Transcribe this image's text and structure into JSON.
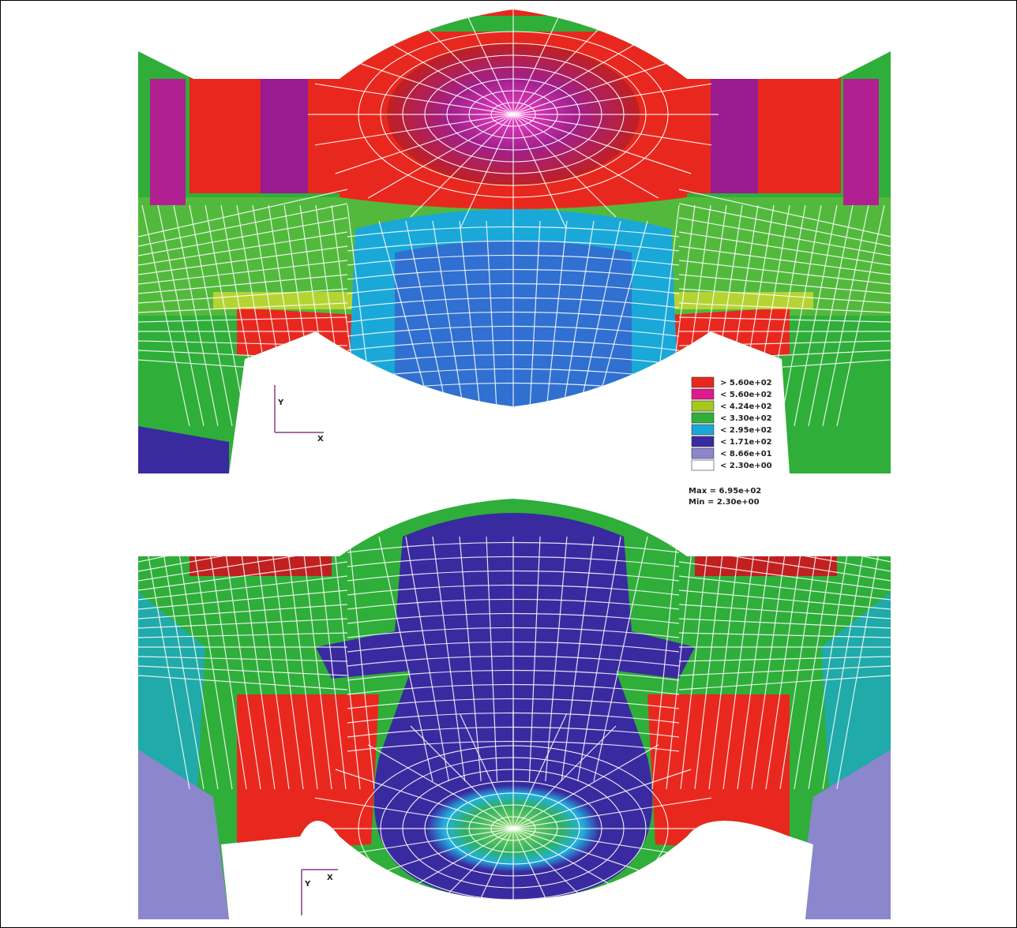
{
  "legend": {
    "items": [
      {
        "label": "> 5.60e+02",
        "color": "#e8281e"
      },
      {
        "label": "< 5.60e+02",
        "color": "#e0198c"
      },
      {
        "label": "< 4.24e+02",
        "color": "#a6c81e"
      },
      {
        "label": "< 3.30e+02",
        "color": "#2fae3a"
      },
      {
        "label": "< 2.95e+02",
        "color": "#1aa8d8"
      },
      {
        "label": "< 1.71e+02",
        "color": "#3a2aa0"
      },
      {
        "label": "< 8.66e+01",
        "color": "#8c86cc"
      },
      {
        "label": "< 2.30e+00",
        "color": "#ffffff"
      }
    ],
    "max": "Max = 6.95e+02",
    "min": "Min = 2.30e+00"
  },
  "axes": {
    "top": {
      "y": "Y",
      "x": "X"
    },
    "bottom": {
      "y": "Y",
      "x": "X"
    }
  }
}
